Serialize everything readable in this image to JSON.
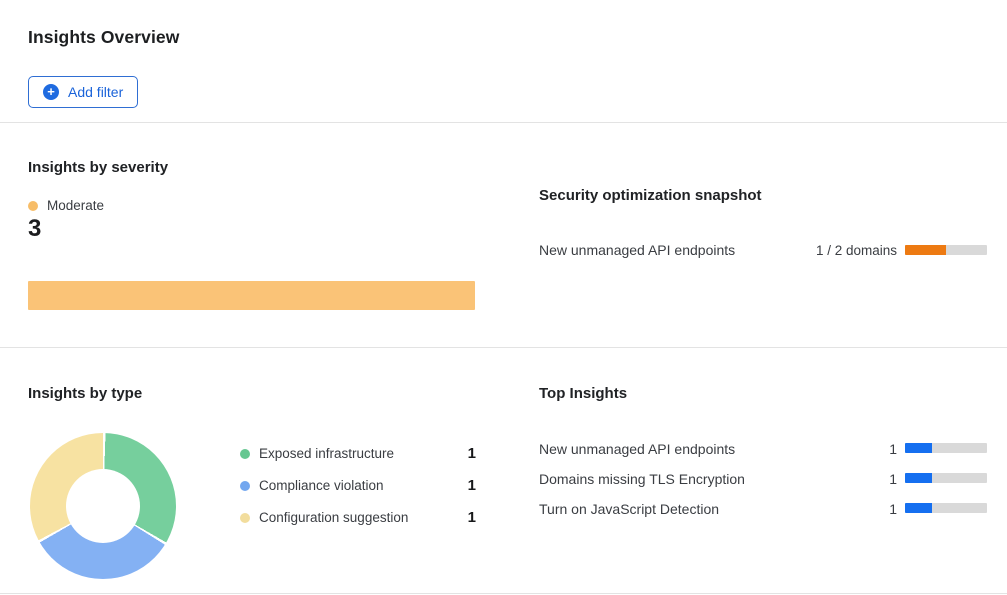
{
  "header": {
    "title": "Insights Overview",
    "add_filter_label": "Add filter",
    "plus_icon": "+",
    "accent_color": "#1f6be0"
  },
  "severity_section": {
    "title": "Insights by severity",
    "legend_label": "Moderate",
    "legend_color": "#F7BD68",
    "count": "3",
    "bar_color": "#FAC377",
    "chart_data": {
      "type": "bar",
      "orientation": "horizontal",
      "categories": [
        "Moderate"
      ],
      "values": [
        3
      ],
      "title": "Insights by severity",
      "legend_position": "top-left",
      "bar_fill_fraction": 1
    }
  },
  "snapshot_section": {
    "title": "Security optimization snapshot",
    "rows": [
      {
        "label": "New unmanaged API endpoints",
        "value_text": "1 / 2 domains",
        "current": 1,
        "total": 2,
        "bar_color": "#ED7A12",
        "track_color": "#D9D9D9"
      }
    ]
  },
  "type_section": {
    "title": "Insights by type",
    "chart_data": {
      "type": "pie",
      "donut": true,
      "categories": [
        "Exposed infrastructure",
        "Compliance violation",
        "Configuration suggestion"
      ],
      "values": [
        1,
        1,
        1
      ],
      "colors": [
        "#76CF9D",
        "#84B1F3",
        "#F7E2A2"
      ],
      "start_angle_deg": 0,
      "legend_position": "right"
    },
    "legend": [
      {
        "label": "Exposed infrastructure",
        "value": "1",
        "color": "#66C791"
      },
      {
        "label": "Compliance violation",
        "value": "1",
        "color": "#73A7EF"
      },
      {
        "label": "Configuration suggestion",
        "value": "1",
        "color": "#F2DD9D"
      }
    ]
  },
  "top_insights_section": {
    "title": "Top Insights",
    "bar_color": "#156FF0",
    "track_color": "#D9D9D9",
    "max": 3,
    "rows": [
      {
        "label": "New unmanaged API endpoints",
        "value": 1,
        "value_text": "1"
      },
      {
        "label": "Domains missing TLS Encryption",
        "value": 1,
        "value_text": "1"
      },
      {
        "label": "Turn on JavaScript Detection",
        "value": 1,
        "value_text": "1"
      }
    ],
    "chart_data": {
      "type": "bar",
      "orientation": "horizontal",
      "categories": [
        "New unmanaged API endpoints",
        "Domains missing TLS Encryption",
        "Turn on JavaScript Detection"
      ],
      "values": [
        1,
        1,
        1
      ],
      "xlim": [
        0,
        3
      ],
      "title": "Top Insights"
    }
  }
}
